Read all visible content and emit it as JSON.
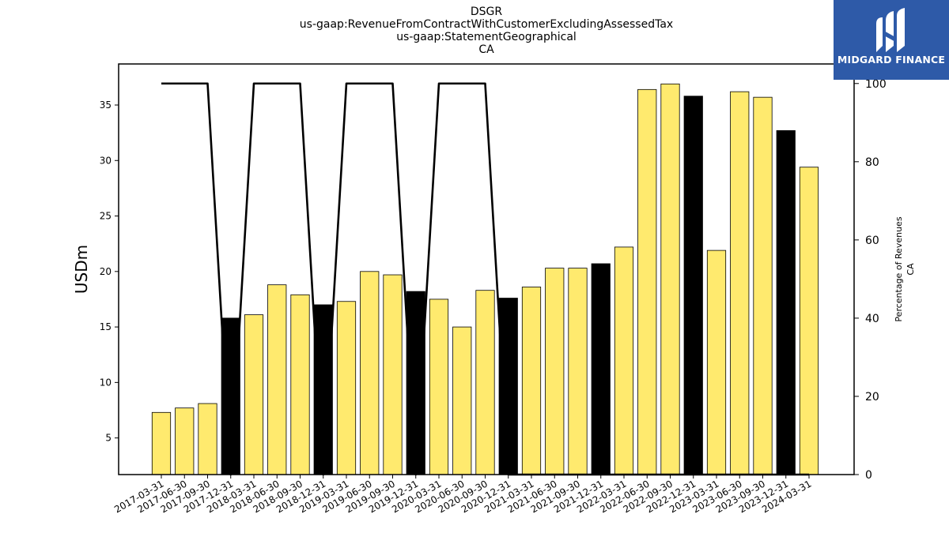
{
  "titles": {
    "line1": "DSGR",
    "line2": "us-gaap:RevenueFromContractWithCustomerExcludingAssessedTax",
    "line3": "us-gaap:StatementGeographical",
    "line4": "CA"
  },
  "logo": {
    "text": "MIDGARD FINANCE",
    "icon": "midgard-logo-icon",
    "background": "#2e5aa8"
  },
  "chart_data": {
    "type": "bar",
    "categories": [
      "2017-03-31",
      "2017-06-30",
      "2017-09-30",
      "2017-12-31",
      "2018-03-31",
      "2018-06-30",
      "2018-09-30",
      "2018-12-31",
      "2019-03-31",
      "2019-06-30",
      "2019-09-30",
      "2019-12-31",
      "2020-03-31",
      "2020-06-30",
      "2020-09-30",
      "2020-12-31",
      "2021-03-31",
      "2021-06-30",
      "2021-09-30",
      "2021-12-31",
      "2022-03-31",
      "2022-06-30",
      "2022-09-30",
      "2022-12-31",
      "2023-03-31",
      "2023-06-30",
      "2023-09-30",
      "2023-12-31",
      "2024-03-31"
    ],
    "values": [
      7.3,
      7.7,
      8.1,
      15.8,
      16.1,
      18.8,
      17.9,
      17.0,
      17.3,
      20.0,
      19.7,
      18.2,
      17.5,
      15.0,
      18.3,
      17.6,
      18.6,
      20.3,
      20.3,
      20.7,
      22.2,
      36.4,
      36.9,
      35.8,
      21.9,
      36.2,
      35.7,
      32.7,
      29.4
    ],
    "bar_colors": [
      "#ffea6e",
      "#ffea6e",
      "#ffea6e",
      "#000000",
      "#ffea6e",
      "#ffea6e",
      "#ffea6e",
      "#000000",
      "#ffea6e",
      "#ffea6e",
      "#ffea6e",
      "#000000",
      "#ffea6e",
      "#ffea6e",
      "#ffea6e",
      "#000000",
      "#ffea6e",
      "#ffea6e",
      "#ffea6e",
      "#000000",
      "#ffea6e",
      "#ffea6e",
      "#ffea6e",
      "#000000",
      "#ffea6e",
      "#ffea6e",
      "#ffea6e",
      "#000000",
      "#ffea6e"
    ],
    "series": [
      {
        "axis": "right",
        "color": "#000000",
        "values": [
          100,
          100,
          100,
          0,
          100,
          100,
          100,
          0,
          100,
          100,
          100,
          0,
          100,
          100,
          100,
          0,
          0,
          0,
          0,
          0,
          0,
          0,
          0,
          0,
          0,
          0,
          0,
          0,
          0
        ]
      }
    ],
    "ylabel": "USDm",
    "y2label_line1": "Percentage of Revenues",
    "y2label_line2": "CA",
    "ylim": [
      1.7,
      38.7
    ],
    "y_ticks": [
      5,
      10,
      15,
      20,
      25,
      30,
      35
    ],
    "y2lim": [
      0,
      105
    ],
    "y2_ticks": [
      0,
      20,
      40,
      60,
      80,
      100
    ],
    "grid": false,
    "legend": "none"
  }
}
